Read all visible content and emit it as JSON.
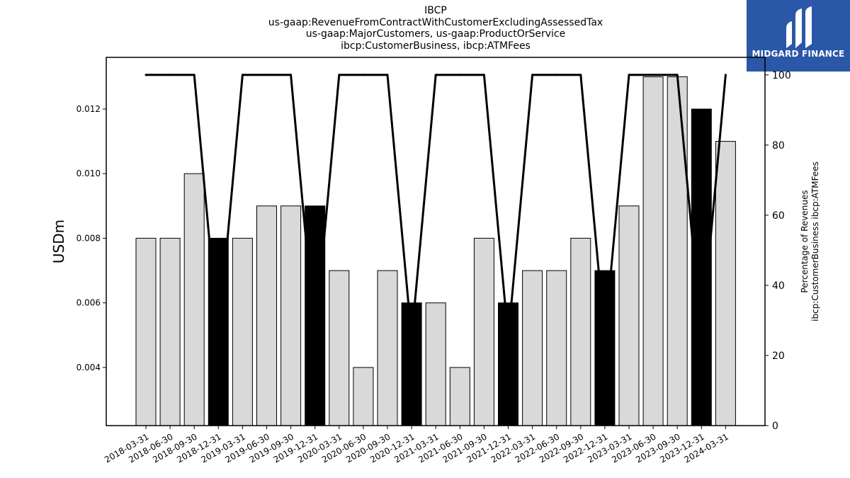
{
  "chart_data": {
    "type": "bar",
    "title_lines": [
      "IBCP",
      "us-gaap:RevenueFromContractWithCustomerExcludingAssessedTax",
      "us-gaap:MajorCustomers, us-gaap:ProductOrService",
      "ibcp:CustomerBusiness, ibcp:ATMFees"
    ],
    "categories": [
      "2018-03-31",
      "2018-06-30",
      "2018-09-30",
      "2018-12-31",
      "2019-03-31",
      "2019-06-30",
      "2019-09-30",
      "2019-12-31",
      "2020-03-31",
      "2020-06-30",
      "2020-09-30",
      "2020-12-31",
      "2021-03-31",
      "2021-06-30",
      "2021-09-30",
      "2021-12-31",
      "2022-03-31",
      "2022-06-30",
      "2022-09-30",
      "2022-12-31",
      "2023-03-31",
      "2023-06-30",
      "2023-09-30",
      "2023-12-31",
      "2024-03-31"
    ],
    "series": [
      {
        "values": [
          0.008,
          0.008,
          0.01,
          0.008,
          0.008,
          0.009,
          0.009,
          0.009,
          0.007,
          0.004,
          0.007,
          0.006,
          0.006,
          0.004,
          0.008,
          0.006,
          0.007,
          0.007,
          0.008,
          0.007,
          0.009,
          0.013,
          0.013,
          0.012,
          0.011
        ],
        "axis": "left"
      },
      {
        "values": [
          100,
          100,
          100,
          25,
          100,
          100,
          100,
          25,
          100,
          100,
          100,
          25,
          100,
          100,
          100,
          25,
          100,
          100,
          100,
          25,
          100,
          100,
          100,
          25,
          100
        ],
        "axis": "right"
      }
    ],
    "highlighted_categories": [
      "2018-12-31",
      "2019-12-31",
      "2020-12-31",
      "2021-12-31",
      "2022-12-31",
      "2023-12-31"
    ],
    "ylabel": "USDm",
    "ylabel_right_lines": [
      "Percentage of Revenues",
      "ibcp:CustomerBusiness ibcp:ATMFees"
    ],
    "ylim": [
      0.0022,
      0.0136
    ],
    "ylim_right": [
      0,
      105
    ],
    "yticks": [
      0.004,
      0.006,
      0.008,
      0.01,
      0.012
    ],
    "ytick_labels": [
      "0.004",
      "0.006",
      "0.008",
      "0.010",
      "0.012"
    ],
    "yticks_right": [
      0,
      20,
      40,
      60,
      80,
      100
    ],
    "grid": false,
    "colors": {
      "bar": "#d9d9d9",
      "bar_highlight": "#000000",
      "bar_edge": "#000000",
      "line": "#000000"
    }
  },
  "logo": {
    "text": "MIDGARD FINANCE",
    "color": "#2b57a8"
  }
}
